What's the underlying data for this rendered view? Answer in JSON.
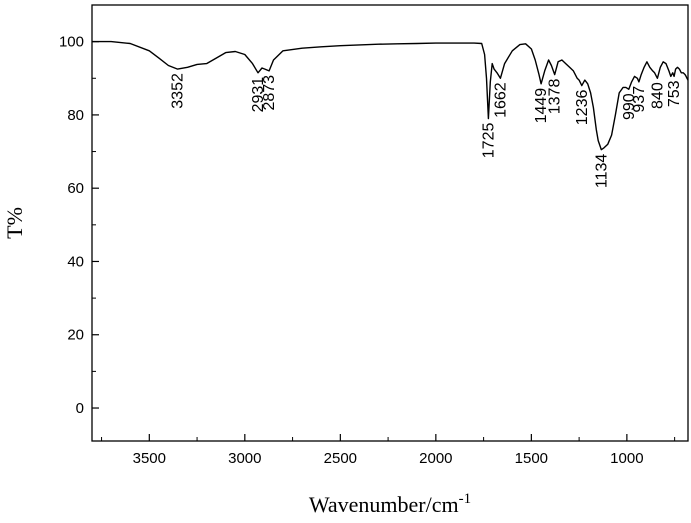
{
  "chart_data": {
    "type": "line",
    "title": "",
    "xlabel": "Wavenumber/cm",
    "xlabel_superscript": "-1",
    "ylabel": "T%",
    "xlim": [
      3800,
      680
    ],
    "ylim": [
      -9,
      110
    ],
    "x_reversed": true,
    "grid": false,
    "legend": "none",
    "x_ticks": [
      3500,
      3000,
      2500,
      2000,
      1500,
      1000
    ],
    "x_tick_labels": [
      "3500",
      "3000",
      "2500",
      "2000",
      "1500",
      "1000"
    ],
    "y_ticks": [
      0,
      20,
      40,
      60,
      80,
      100
    ],
    "y_tick_labels": [
      "0",
      "20",
      "40",
      "60",
      "80",
      "100"
    ],
    "peak_labels": [
      {
        "text": "3352",
        "x": 3352,
        "y": 92.5
      },
      {
        "text": "2931",
        "x": 2931,
        "y": 91.5
      },
      {
        "text": "2873",
        "x": 2873,
        "y": 92.0
      },
      {
        "text": "1725",
        "x": 1725,
        "y": 79.0
      },
      {
        "text": "1662",
        "x": 1662,
        "y": 90.0
      },
      {
        "text": "1449",
        "x": 1449,
        "y": 88.5
      },
      {
        "text": "1378",
        "x": 1378,
        "y": 91.0
      },
      {
        "text": "1236",
        "x": 1236,
        "y": 88.0
      },
      {
        "text": "1134",
        "x": 1134,
        "y": 70.5
      },
      {
        "text": "990",
        "x": 990,
        "y": 87.0
      },
      {
        "text": "937",
        "x": 937,
        "y": 89.0
      },
      {
        "text": "840",
        "x": 840,
        "y": 90.0
      },
      {
        "text": "753",
        "x": 753,
        "y": 90.5
      }
    ],
    "series": [
      {
        "color": "#000000",
        "x": [
          3800,
          3700,
          3600,
          3500,
          3450,
          3400,
          3352,
          3300,
          3250,
          3200,
          3150,
          3100,
          3050,
          3000,
          2960,
          2931,
          2910,
          2895,
          2873,
          2850,
          2800,
          2700,
          2600,
          2500,
          2400,
          2300,
          2200,
          2100,
          2000,
          1900,
          1800,
          1760,
          1745,
          1735,
          1725,
          1715,
          1705,
          1695,
          1680,
          1662,
          1640,
          1600,
          1560,
          1530,
          1500,
          1480,
          1460,
          1449,
          1430,
          1410,
          1395,
          1378,
          1360,
          1340,
          1320,
          1300,
          1280,
          1260,
          1250,
          1236,
          1220,
          1205,
          1190,
          1175,
          1160,
          1150,
          1140,
          1134,
          1120,
          1100,
          1080,
          1060,
          1040,
          1020,
          1005,
          990,
          975,
          960,
          945,
          937,
          925,
          910,
          895,
          880,
          865,
          855,
          840,
          825,
          810,
          795,
          780,
          770,
          760,
          753,
          745,
          735,
          725,
          715,
          705,
          695,
          690,
          685,
          680
        ],
        "y": [
          100,
          100,
          99.5,
          97.5,
          95.5,
          93.5,
          92.5,
          93,
          93.8,
          94,
          95.5,
          97,
          97.3,
          96.5,
          94,
          91.5,
          92.8,
          92.5,
          92,
          95,
          97.5,
          98.2,
          98.6,
          98.9,
          99.1,
          99.3,
          99.4,
          99.5,
          99.6,
          99.6,
          99.6,
          99.5,
          96.5,
          90,
          79,
          89,
          94,
          92.5,
          91.5,
          90,
          94,
          97.5,
          99.2,
          99.4,
          98,
          95,
          91,
          88.5,
          92,
          95,
          93.5,
          91,
          94.5,
          95,
          94,
          93,
          92,
          90,
          89.5,
          88,
          89.5,
          88.5,
          86,
          82,
          76,
          73,
          71.5,
          70.5,
          71,
          72,
          74.5,
          80,
          86,
          87.5,
          87.5,
          87,
          89,
          90.5,
          90,
          89,
          91,
          93,
          94.5,
          93,
          92,
          91.5,
          90,
          93,
          94.5,
          94,
          92,
          90.5,
          91.5,
          90.5,
          92.5,
          93,
          92.5,
          91.5,
          91.5,
          91,
          90.5,
          90,
          89.5
        ]
      }
    ]
  }
}
